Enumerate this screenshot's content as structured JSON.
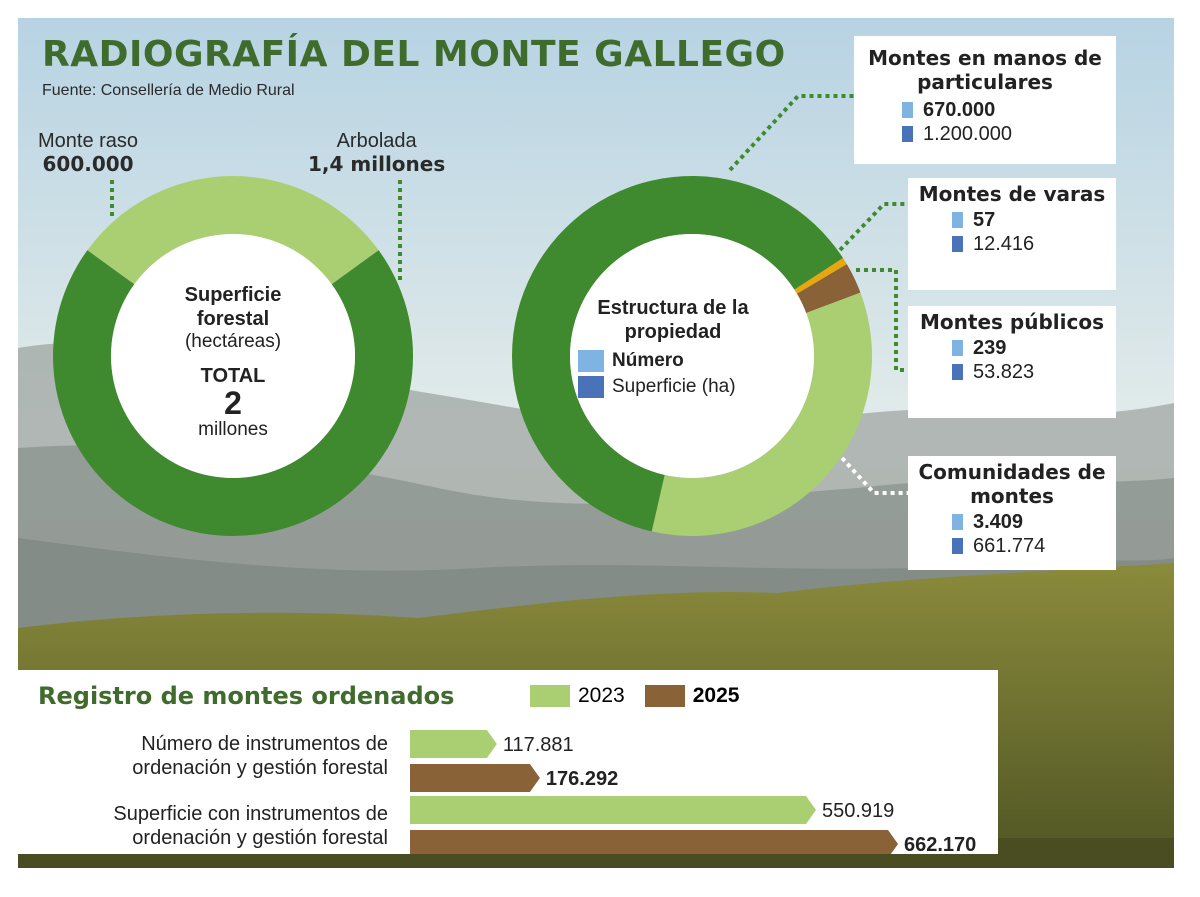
{
  "title": "RADIOGRAFÍA DEL MONTE GALLEGO",
  "source": "Fuente: Consellería de Medio Rural",
  "colors": {
    "dark_green": "#3f8a2e",
    "light_green": "#a9cf72",
    "brown": "#8a6238",
    "orange": "#e8a70f",
    "blue_light": "#7fb4e2",
    "blue_dark": "#4a72b8",
    "title_green": "#3f6b2c"
  },
  "donut1": {
    "center_title": "Superficie forestal",
    "center_unit": "(hectáreas)",
    "total_label": "TOTAL",
    "total_value": "2",
    "total_unit": "millones",
    "segments": [
      {
        "label": "Monte raso",
        "value_text": "600.000"
      },
      {
        "label": "Arbolada",
        "value_text": "1,4 millones"
      }
    ]
  },
  "donut2": {
    "center_title": "Estructura de la propiedad",
    "legend": [
      {
        "label": "Número",
        "color": "#7fb4e2"
      },
      {
        "label": "Superficie (ha)",
        "color": "#4a72b8"
      }
    ]
  },
  "ownership_boxes": [
    {
      "title": "Montes en manos de particulares",
      "number": "670.000",
      "surface": "1.200.000"
    },
    {
      "title": "Montes de varas",
      "number": "57",
      "surface": "12.416"
    },
    {
      "title": "Montes públicos",
      "number": "239",
      "surface": "53.823"
    },
    {
      "title": "Comunidades de montes",
      "number": "3.409",
      "surface": "661.774"
    }
  ],
  "registry": {
    "title": "Registro de montes ordenados",
    "legend": [
      {
        "label": "2023",
        "color": "#a9cf72"
      },
      {
        "label": "2025",
        "color": "#8a6238"
      }
    ],
    "rows": [
      {
        "label_line1": "Número de instrumentos de",
        "label_line2": "ordenación y gestión forestal",
        "v2023_text": "117.881",
        "v2025_text": "176.292"
      },
      {
        "label_line1": "Superficie con instrumentos de",
        "label_line2": "ordenación y gestión forestal",
        "v2023_text": "550.919",
        "v2025_text": "662.170"
      }
    ]
  },
  "chart_data": [
    {
      "type": "pie",
      "categories": [
        "Monte raso",
        "Arbolada"
      ],
      "values": [
        600000,
        1400000
      ],
      "title": "Superficie forestal"
    },
    {
      "type": "pie",
      "categories": [
        "Montes en manos de particulares",
        "Montes de varas",
        "Montes públicos",
        "Comunidades de montes"
      ],
      "series": [
        {
          "name": "Número",
          "values": [
            670000,
            57,
            239,
            3409
          ]
        },
        {
          "name": "Superficie (ha)",
          "values": [
            1200000,
            12416,
            53823,
            661774
          ]
        }
      ],
      "title": "Estructura de la propiedad"
    },
    {
      "type": "bar",
      "title": "Registro de montes ordenados",
      "categories": [
        "Número de instrumentos de ordenación y gestión forestal",
        "Superficie con instrumentos de ordenación y gestión forestal"
      ],
      "series": [
        {
          "name": "2023",
          "values": [
            117881,
            550919
          ]
        },
        {
          "name": "2025",
          "values": [
            176292,
            662170
          ]
        }
      ]
    }
  ]
}
